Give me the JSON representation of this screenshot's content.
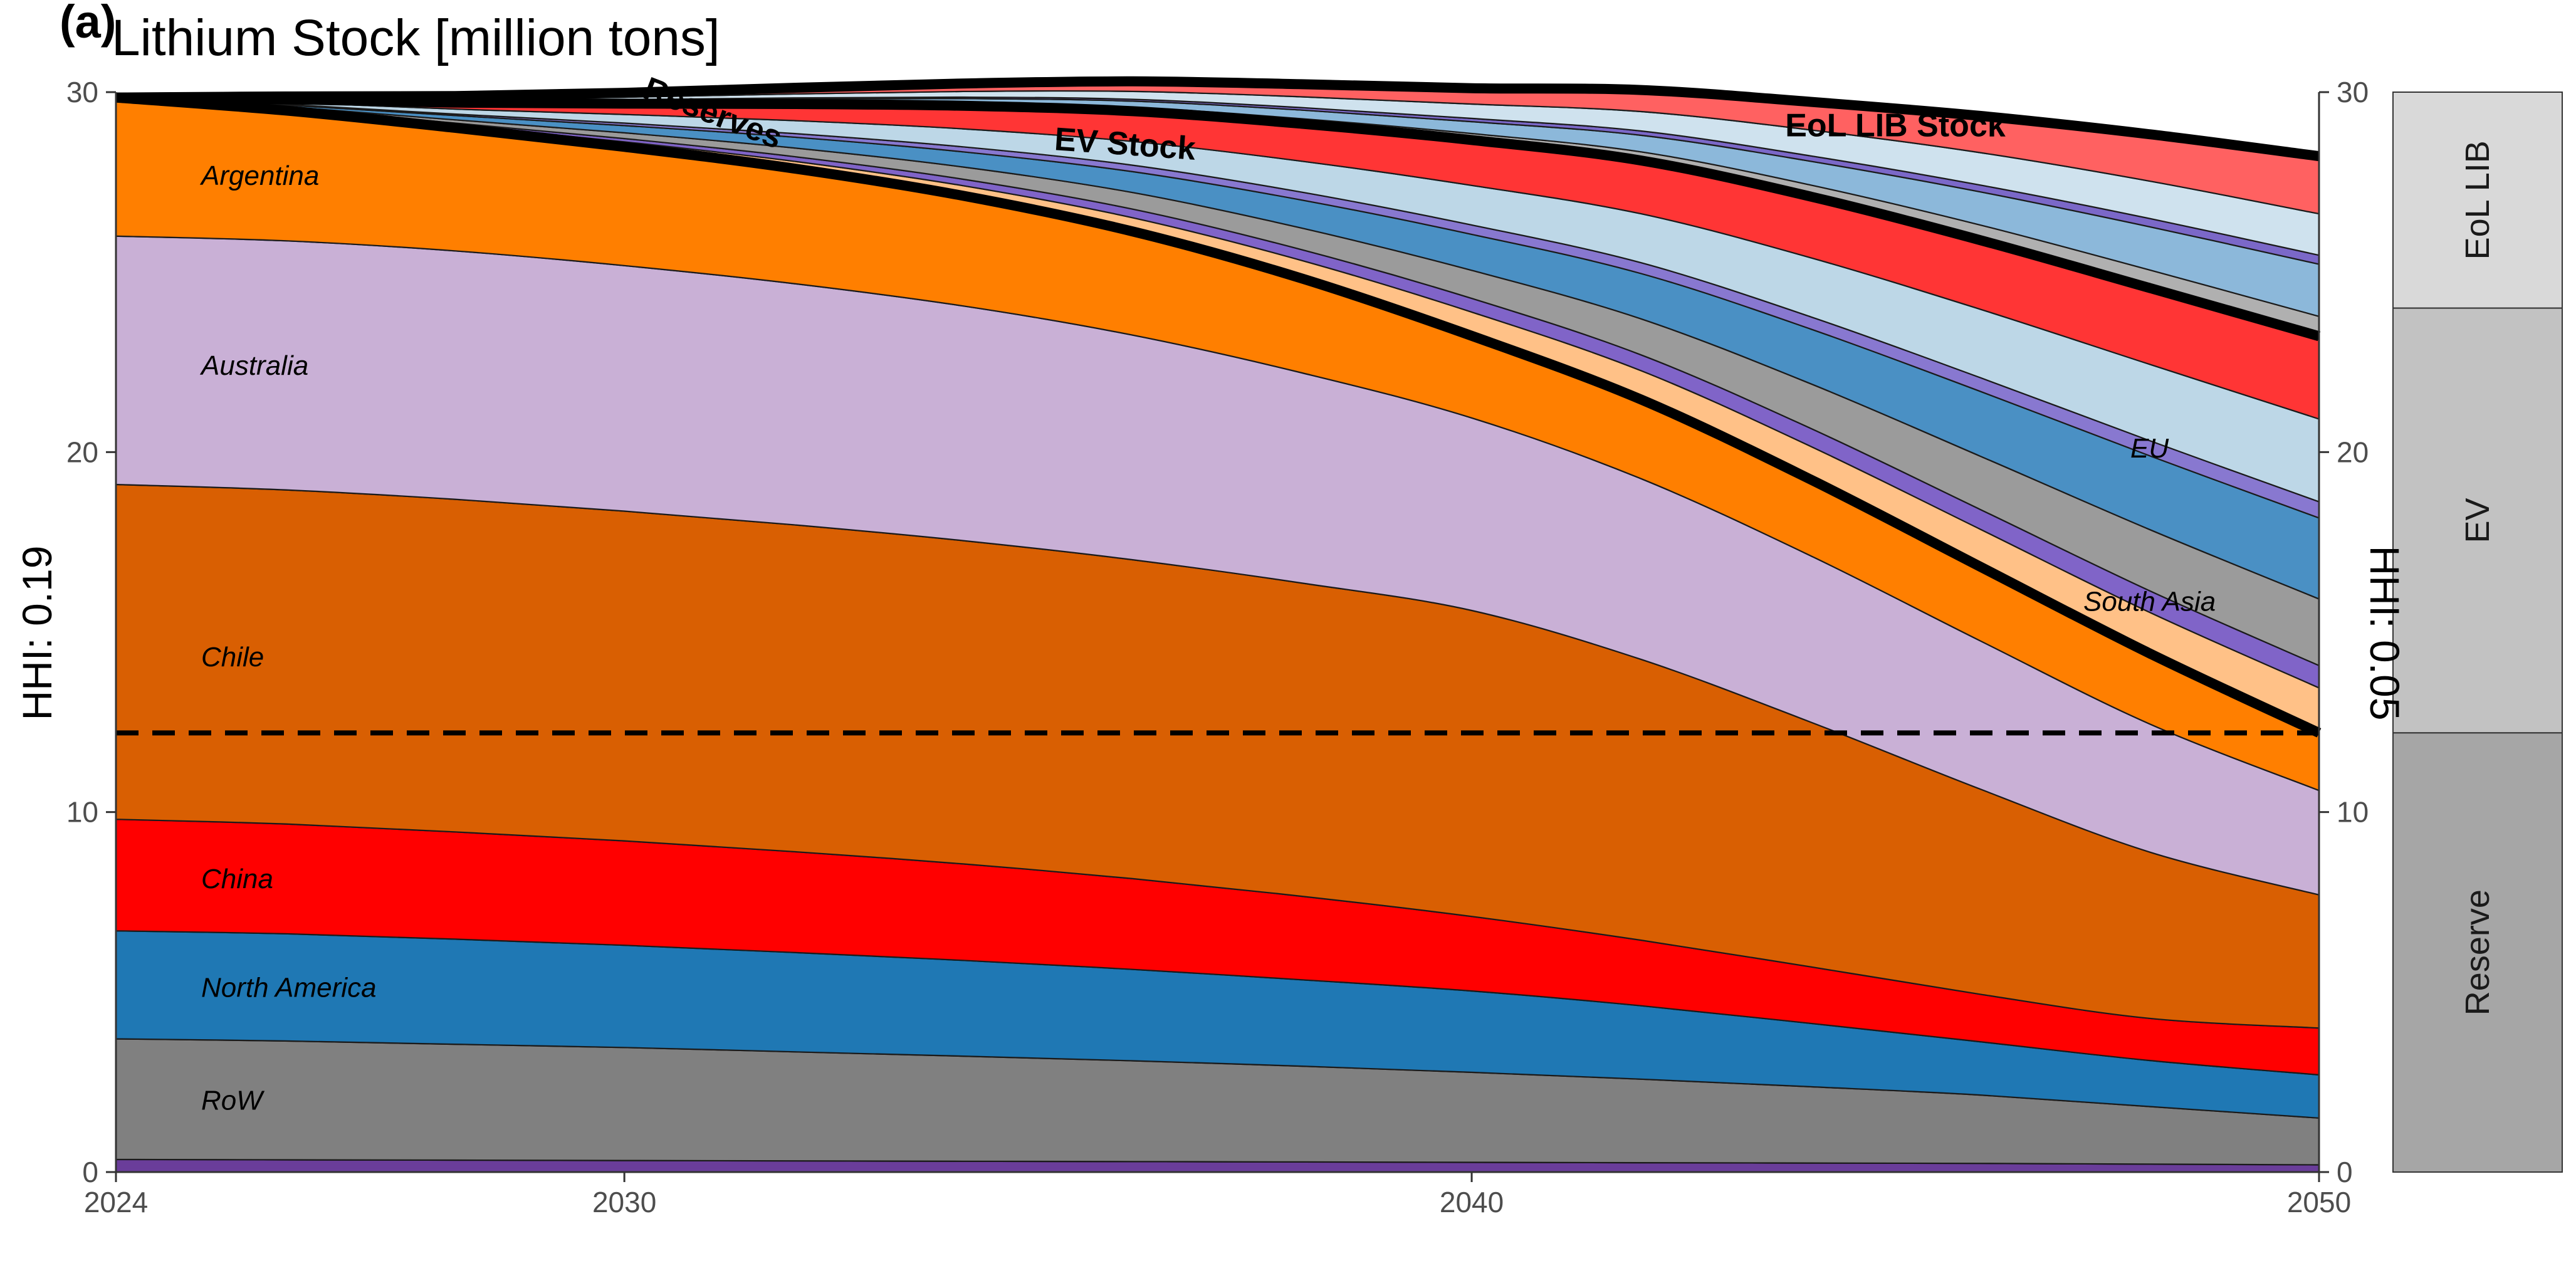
{
  "panel_label": "(a)",
  "chart_data": {
    "type": "area",
    "title": "Lithium Stock [million tons]",
    "x": [
      2024,
      2026,
      2028,
      2030,
      2032,
      2034,
      2036,
      2038,
      2040,
      2042,
      2044,
      2046,
      2048,
      2050
    ],
    "xticks": [
      "2024",
      "2030",
      "2040",
      "2050"
    ],
    "yticks": [
      "0",
      "10",
      "20",
      "30"
    ],
    "right_yticks": [
      "0",
      "10",
      "20",
      "30"
    ],
    "xlim": [
      2024,
      2050
    ],
    "ylim": [
      0,
      30
    ],
    "left_ylabel": "HHI: 0.19",
    "right_ylabel": "HHI: 0.05",
    "dashed_line_y": 12.2,
    "facet_strips": [
      {
        "label": "EoL LIB",
        "from": 24.0,
        "to": 30.0
      },
      {
        "label": "EV",
        "from": 12.2,
        "to": 24.0
      },
      {
        "label": "Reserve",
        "from": 0,
        "to": 12.2
      }
    ],
    "series": [
      {
        "name": "",
        "color": "#6A3D9A",
        "values": [
          0.35,
          0.34,
          0.33,
          0.32,
          0.31,
          0.3,
          0.29,
          0.28,
          0.27,
          0.26,
          0.25,
          0.24,
          0.22,
          0.2
        ]
      },
      {
        "name": "RoW",
        "color": "#808080",
        "values": [
          3.35,
          3.3,
          3.22,
          3.14,
          3.03,
          2.92,
          2.8,
          2.66,
          2.5,
          2.32,
          2.12,
          1.9,
          1.6,
          1.3
        ]
      },
      {
        "name": "North America",
        "color": "#1F78B4",
        "values": [
          3.0,
          2.98,
          2.92,
          2.84,
          2.76,
          2.66,
          2.54,
          2.4,
          2.26,
          2.04,
          1.76,
          1.48,
          1.28,
          1.2
        ]
      },
      {
        "name": "China",
        "color": "#FF0000",
        "values": [
          3.1,
          3.05,
          2.98,
          2.9,
          2.8,
          2.68,
          2.52,
          2.32,
          2.07,
          1.82,
          1.57,
          1.32,
          1.17,
          1.3
        ]
      },
      {
        "name": "Chile",
        "color": "#D95F02",
        "values": [
          9.3,
          9.28,
          9.24,
          9.16,
          9.08,
          8.98,
          8.86,
          8.7,
          8.5,
          7.8,
          6.8,
          5.7,
          4.62,
          3.7
        ]
      },
      {
        "name": "Australia",
        "color": "#C9B0D6",
        "values": [
          6.9,
          6.92,
          6.9,
          6.82,
          6.7,
          6.52,
          6.24,
          5.84,
          5.35,
          5.02,
          4.62,
          4.12,
          3.56,
          2.9
        ]
      },
      {
        "name": "Argentina",
        "color": "#FF7F00",
        "values": [
          3.85,
          3.62,
          3.42,
          3.3,
          3.2,
          3.06,
          2.88,
          2.62,
          2.28,
          2.2,
          2.12,
          2.06,
          1.96,
          1.6
        ]
      },
      {
        "name": "",
        "color": "#FFC187",
        "values": [
          0.0,
          0.04,
          0.08,
          0.14,
          0.2,
          0.28,
          0.38,
          0.5,
          0.66,
          0.8,
          0.92,
          1.04,
          1.14,
          1.25
        ]
      },
      {
        "name": "South Asia",
        "color": "#8064C8",
        "values": [
          0.0,
          0.02,
          0.05,
          0.09,
          0.13,
          0.18,
          0.24,
          0.3,
          0.38,
          0.44,
          0.5,
          0.55,
          0.6,
          0.62
        ]
      },
      {
        "name": "",
        "color": "#9B9B9B",
        "values": [
          0.0,
          0.04,
          0.09,
          0.16,
          0.24,
          0.34,
          0.46,
          0.6,
          0.78,
          1.0,
          1.24,
          1.48,
          1.7,
          1.85
        ]
      },
      {
        "name": "",
        "color": "#4A90C4",
        "values": [
          0.0,
          0.05,
          0.12,
          0.2,
          0.3,
          0.42,
          0.58,
          0.78,
          1.0,
          1.26,
          1.52,
          1.8,
          2.05,
          2.25
        ]
      },
      {
        "name": "EU",
        "color": "#8878D0",
        "values": [
          0.0,
          0.02,
          0.04,
          0.07,
          0.1,
          0.14,
          0.18,
          0.22,
          0.26,
          0.3,
          0.34,
          0.38,
          0.42,
          0.45
        ]
      },
      {
        "name": "",
        "color": "#BDD7E7",
        "values": [
          0.0,
          0.06,
          0.14,
          0.24,
          0.36,
          0.5,
          0.66,
          0.86,
          1.1,
          1.36,
          1.64,
          1.9,
          2.12,
          2.3
        ]
      },
      {
        "name": "",
        "color": "#FF3535",
        "values": [
          0.0,
          0.08,
          0.18,
          0.3,
          0.46,
          0.64,
          0.84,
          1.04,
          1.26,
          1.48,
          1.7,
          1.92,
          2.12,
          2.3
        ]
      },
      {
        "name": "",
        "color": "#B0B0B0",
        "values": [
          0.0,
          0.01,
          0.02,
          0.04,
          0.06,
          0.08,
          0.11,
          0.14,
          0.18,
          0.24,
          0.32,
          0.42,
          0.5,
          0.55
        ]
      },
      {
        "name": "",
        "color": "#8CB8DA",
        "values": [
          0.0,
          0.01,
          0.03,
          0.05,
          0.08,
          0.12,
          0.17,
          0.24,
          0.33,
          0.46,
          0.66,
          0.92,
          1.2,
          1.45
        ]
      },
      {
        "name": "",
        "color": "#7B68C8",
        "values": [
          0.0,
          0.0,
          0.01,
          0.02,
          0.03,
          0.04,
          0.05,
          0.07,
          0.09,
          0.12,
          0.15,
          0.19,
          0.23,
          0.25
        ]
      },
      {
        "name": "",
        "color": "#CFE2EE",
        "values": [
          0.0,
          0.02,
          0.04,
          0.07,
          0.11,
          0.16,
          0.22,
          0.3,
          0.4,
          0.54,
          0.72,
          0.9,
          1.04,
          1.15
        ]
      },
      {
        "name": "",
        "color": "#FF6161",
        "values": [
          0.0,
          0.04,
          0.08,
          0.12,
          0.17,
          0.22,
          0.28,
          0.35,
          0.44,
          0.6,
          0.78,
          1.02,
          1.3,
          1.6
        ]
      }
    ],
    "boundaries": [
      {
        "label": "Reserves",
        "after_series": 6
      },
      {
        "label": "EV Stock",
        "after_series": 13
      },
      {
        "label": "EoL LIB Stock",
        "after_series": 18
      }
    ],
    "annotations": [
      {
        "text": "Argentina",
        "series": "Argentina",
        "x": 2025
      },
      {
        "text": "Australia",
        "series": "Australia",
        "x": 2025
      },
      {
        "text": "Chile",
        "series": "Chile",
        "x": 2025
      },
      {
        "text": "China",
        "series": "China",
        "x": 2025
      },
      {
        "text": "North America",
        "series": "North America",
        "x": 2025
      },
      {
        "text": "RoW",
        "series": "RoW",
        "x": 2025
      },
      {
        "text": "EU",
        "series": "EU",
        "x": 2048
      },
      {
        "text": "South Asia",
        "series": "South Asia",
        "x": 2048
      }
    ]
  }
}
